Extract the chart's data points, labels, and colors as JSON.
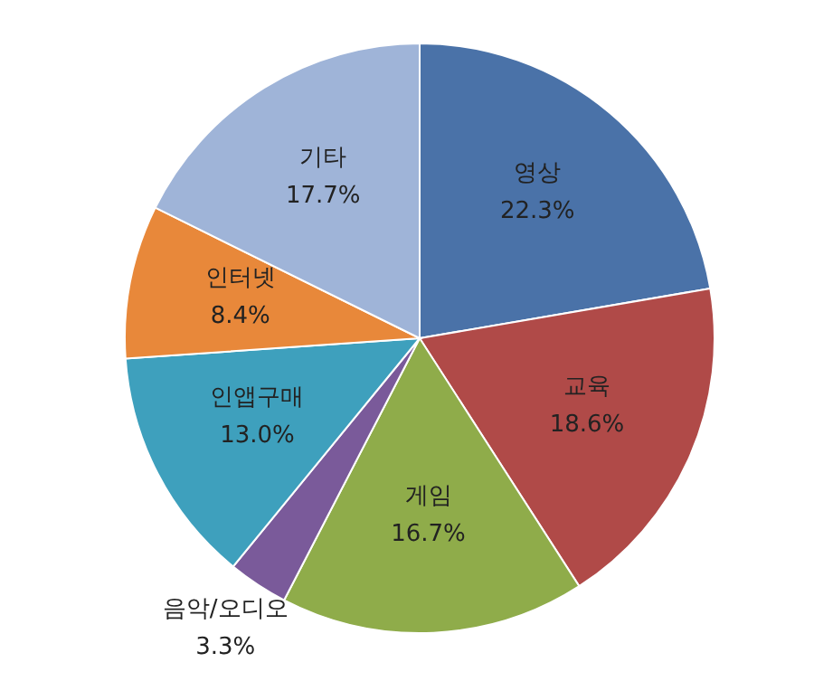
{
  "chart_data": {
    "type": "pie",
    "categories": [
      "영상",
      "교육",
      "게임",
      "음악/오디오",
      "인앱구매",
      "인터넷",
      "기타"
    ],
    "values": [
      22.3,
      18.6,
      16.7,
      3.3,
      13.0,
      8.4,
      17.7
    ],
    "value_labels": [
      "22.3%",
      "18.6%",
      "16.7%",
      "3.3%",
      "13.0%",
      "8.4%",
      "17.7%"
    ],
    "colors": [
      "#4a72a8",
      "#b04a48",
      "#8fac4a",
      "#7a5a9a",
      "#3ea0bd",
      "#e8883a",
      "#9fb4d8"
    ]
  }
}
